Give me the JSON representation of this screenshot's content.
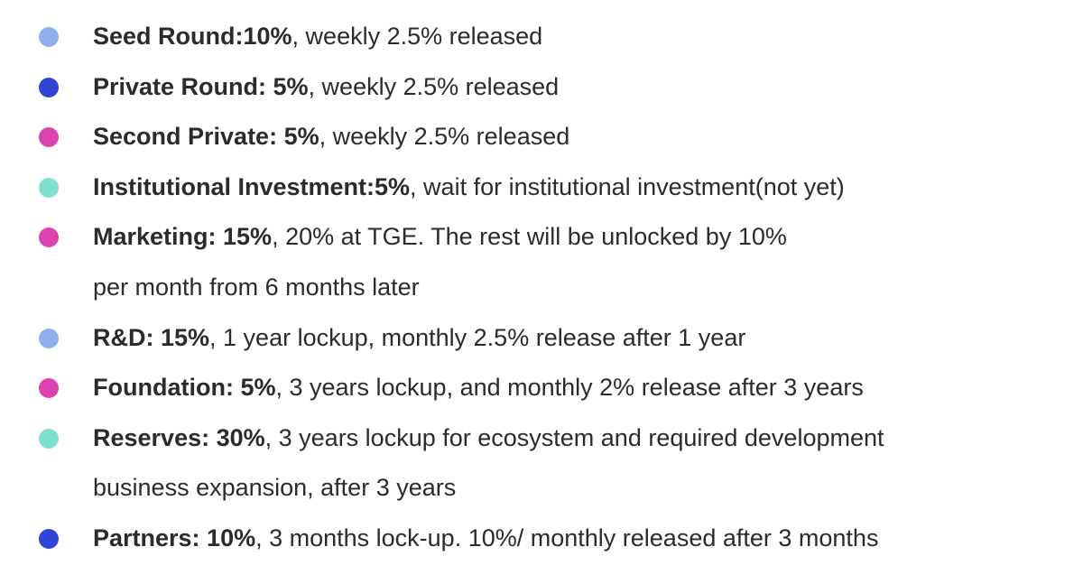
{
  "items": [
    {
      "label": "Seed Round:10%",
      "text": [
        ", weekly 2.5% released"
      ],
      "color": "#8faef0"
    },
    {
      "label": "Private Round: 5%",
      "text": [
        ", weekly 2.5% released"
      ],
      "color": "#2f45d8"
    },
    {
      "label": "Second Private: 5%",
      "text": [
        ", weekly 2.5% released"
      ],
      "color": "#dc43b0"
    },
    {
      "label": "Institutional Investment:5%",
      "text": [
        ", wait for institutional investment(not yet)"
      ],
      "color": "#7fe0cf"
    },
    {
      "label": "Marketing: 15%",
      "text": [
        ", 20% at TGE. The rest will be unlocked by 10%",
        "per month from 6 months later"
      ],
      "color": "#dc43b0"
    },
    {
      "label": "R&D: 15%",
      "text": [
        ", 1 year lockup, monthly 2.5% release after 1 year"
      ],
      "color": "#8faef0"
    },
    {
      "label": "Foundation: 5%",
      "text": [
        ", 3 years lockup, and monthly 2% release after 3 years"
      ],
      "color": "#dc43b0"
    },
    {
      "label": "Reserves: 30%",
      "text": [
        ", 3 years lockup for ecosystem and required development",
        "business expansion, after 3 years"
      ],
      "color": "#7fe0cf"
    },
    {
      "label": "Partners: 10%",
      "text": [
        ", 3 months lock-up. 10%/ monthly released after 3 months"
      ],
      "color": "#2f45d8"
    }
  ]
}
